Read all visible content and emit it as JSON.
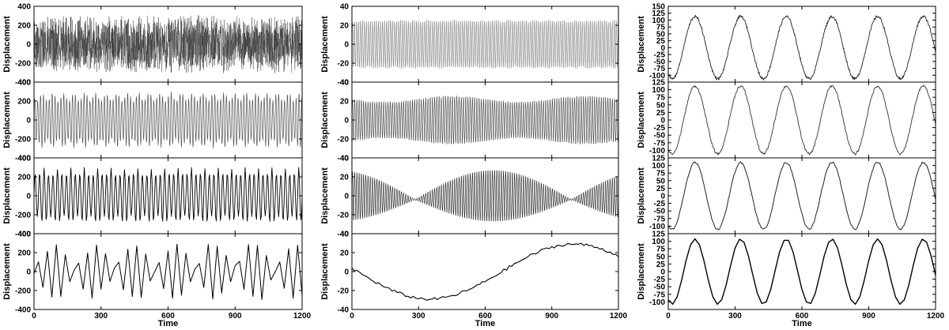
{
  "chart_data": [
    {
      "type": "line",
      "column": 1,
      "xlabel": "Time",
      "ylabel": "Displacement",
      "xlim": [
        0,
        1200
      ],
      "xticks": [
        "0",
        "300",
        "600",
        "900",
        "1200"
      ],
      "panels": [
        {
          "ylim": [
            -400,
            400
          ],
          "yticks": [
            "-400",
            "-200",
            "0",
            "200",
            "400"
          ],
          "series": [
            {
              "kind": "noise-oscillation",
              "amplitude": 310,
              "period": 5,
              "sample_step": 0.6,
              "stroke": "#3a3a3a",
              "width": 0.5,
              "opacity": 0.85
            }
          ]
        },
        {
          "ylim": [
            -400,
            400
          ],
          "yticks": [
            "-400",
            "-200",
            "0",
            "200",
            "400"
          ],
          "series": [
            {
              "kind": "beat",
              "amplitude": 300,
              "period": 13,
              "beat_period": 48,
              "beat_depth": 0.3,
              "sample_step": 1.2,
              "stroke": "#555555",
              "width": 0.7
            }
          ]
        },
        {
          "ylim": [
            -400,
            400
          ],
          "yticks": [
            "-400",
            "-200",
            "0",
            "200",
            "400"
          ],
          "series": [
            {
              "kind": "beat",
              "amplitude": 300,
              "period": 20,
              "beat_period": 60,
              "beat_depth": 0.25,
              "sample_step": 3,
              "stroke": "#000000",
              "width": 0.9
            }
          ]
        },
        {
          "ylim": [
            -400,
            400
          ],
          "yticks": [
            "-400",
            "-200",
            "0",
            "200",
            "400"
          ],
          "series": [
            {
              "kind": "sampled-sine",
              "amplitude": 280,
              "period": 45,
              "sample_step": 20,
              "stroke": "#000000",
              "width": 1
            }
          ]
        }
      ]
    },
    {
      "type": "line",
      "column": 2,
      "xlabel": "Time",
      "ylabel": "Displacement",
      "xlim": [
        0,
        1200
      ],
      "xticks": [
        "0",
        "300",
        "600",
        "900",
        "1200"
      ],
      "panels": [
        {
          "ylim": [
            -40,
            40
          ],
          "yticks": [
            "-40",
            "-20",
            "0",
            "20",
            "40"
          ],
          "series": [
            {
              "kind": "beat",
              "amplitude": 27,
              "period": 9,
              "beat_period": 60,
              "beat_depth": 0.05,
              "sample_step": 0.9,
              "stroke": "#8a8a8a",
              "width": 0.6
            }
          ]
        },
        {
          "ylim": [
            -40,
            40
          ],
          "yticks": [
            "-40",
            "-20",
            "0",
            "20",
            "40"
          ],
          "series": [
            {
              "kind": "beat",
              "amplitude": 27,
              "period": 10,
              "beat_period": 600,
              "beat_depth": 0.25,
              "sample_step": 1,
              "stroke": "#444444",
              "width": 0.6
            }
          ]
        },
        {
          "ylim": [
            -40,
            40
          ],
          "yticks": [
            "-40",
            "-20",
            "0",
            "20",
            "40"
          ],
          "series": [
            {
              "kind": "envelope",
              "amplitude": 28,
              "period": 10,
              "envelope_period": 1300,
              "envelope_phase": 0.3,
              "sample_step": 1,
              "stroke": "#222222",
              "width": 0.6
            }
          ]
        },
        {
          "ylim": [
            -40,
            40
          ],
          "yticks": [
            "-40",
            "-20",
            "0",
            "20",
            "40"
          ],
          "series": [
            {
              "kind": "slow-drift",
              "amplitude": 29,
              "period": 1300,
              "phase_peak": 1000,
              "jitter": 1.5,
              "sample_step": 12,
              "stroke": "#000000",
              "width": 1.1
            }
          ]
        }
      ]
    },
    {
      "type": "line",
      "column": 3,
      "xlabel": "Time",
      "ylabel": "Displacement",
      "xlim": [
        0,
        1200
      ],
      "xticks": [
        "0",
        "300",
        "600",
        "900",
        "1200"
      ],
      "panels": [
        {
          "ylim": [
            -125,
            150
          ],
          "yticks": [
            "-100",
            "-75",
            "-50",
            "-25",
            "0",
            "25",
            "50",
            "75",
            "100",
            "125",
            "150"
          ],
          "series": [
            {
              "kind": "sine",
              "amplitude": 113,
              "period": 205,
              "peak_at": 120,
              "jitter": 5,
              "sample_step": 2,
              "stroke": "#222222",
              "width": 0.9
            }
          ]
        },
        {
          "ylim": [
            -125,
            125
          ],
          "yticks": [
            "-100",
            "-75",
            "-50",
            "-25",
            "0",
            "25",
            "50",
            "75",
            "100",
            "125"
          ],
          "series": [
            {
              "kind": "sine",
              "amplitude": 112,
              "period": 205,
              "peak_at": 120,
              "jitter": 4,
              "sample_step": 3,
              "stroke": "#333333",
              "width": 0.9
            }
          ]
        },
        {
          "ylim": [
            -125,
            125
          ],
          "yticks": [
            "-100",
            "-75",
            "-50",
            "-25",
            "0",
            "25",
            "50",
            "75",
            "100",
            "125"
          ],
          "series": [
            {
              "kind": "sine",
              "amplitude": 110,
              "period": 205,
              "peak_at": 120,
              "jitter": 3,
              "sample_step": 5,
              "stroke": "#222222",
              "width": 1
            }
          ]
        },
        {
          "ylim": [
            -125,
            125
          ],
          "yticks": [
            "-100",
            "-75",
            "-50",
            "-25",
            "0",
            "25",
            "50",
            "75",
            "100",
            "125"
          ],
          "series": [
            {
              "kind": "sine",
              "amplitude": 108,
              "period": 205,
              "peak_at": 120,
              "jitter": 0,
              "sample_step": 20,
              "stroke": "#000000",
              "width": 1.4
            }
          ]
        }
      ]
    }
  ]
}
